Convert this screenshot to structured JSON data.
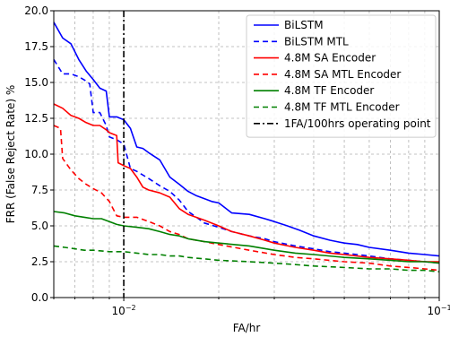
{
  "chart_data": {
    "type": "line",
    "title": "",
    "xlabel": "FA/hr",
    "ylabel": "FRR (False Reject Rate) %",
    "x_scale": "log",
    "xlim": [
      0.006,
      0.1
    ],
    "ylim": [
      0,
      20
    ],
    "x_ticks": [
      {
        "value": 0.01,
        "base": "10",
        "exp": "−2"
      },
      {
        "value": 0.1,
        "base": "10",
        "exp": "−1"
      }
    ],
    "y_ticks": [
      {
        "value": 0,
        "label": "0.0"
      },
      {
        "value": 2.5,
        "label": "2.5"
      },
      {
        "value": 5,
        "label": "5.0"
      },
      {
        "value": 7.5,
        "label": "7.5"
      },
      {
        "value": 10,
        "label": "10.0"
      },
      {
        "value": 12.5,
        "label": "12.5"
      },
      {
        "value": 15,
        "label": "15.0"
      },
      {
        "value": 17.5,
        "label": "17.5"
      },
      {
        "value": 20,
        "label": "20.0"
      }
    ],
    "grid": true,
    "legend_position": "top-right",
    "vline": {
      "x": 0.01,
      "name": "1FA/100hrs operating point",
      "color": "#000000",
      "dash": "dashdot"
    },
    "series": [
      {
        "name": "BiLSTM",
        "color": "#0000ff",
        "dash": "solid",
        "x": [
          0.006,
          0.0064,
          0.0068,
          0.0072,
          0.0076,
          0.008,
          0.0084,
          0.0088,
          0.009,
          0.0095,
          0.01,
          0.0105,
          0.011,
          0.0115,
          0.012,
          0.013,
          0.014,
          0.015,
          0.016,
          0.017,
          0.018,
          0.019,
          0.02,
          0.022,
          0.025,
          0.028,
          0.03,
          0.033,
          0.036,
          0.04,
          0.045,
          0.05,
          0.055,
          0.06,
          0.07,
          0.08,
          0.09,
          0.1
        ],
        "y": [
          19.2,
          18.1,
          17.7,
          16.6,
          15.8,
          15.2,
          14.6,
          14.4,
          12.6,
          12.6,
          12.4,
          11.8,
          10.5,
          10.4,
          10.1,
          9.6,
          8.4,
          7.9,
          7.4,
          7.1,
          6.9,
          6.7,
          6.6,
          5.9,
          5.8,
          5.5,
          5.3,
          5.0,
          4.7,
          4.3,
          4.0,
          3.8,
          3.7,
          3.5,
          3.3,
          3.1,
          3.0,
          2.9
        ]
      },
      {
        "name": "BiLSTM MTL",
        "color": "#0000ff",
        "dash": "dashed",
        "x": [
          0.006,
          0.0064,
          0.0068,
          0.0072,
          0.0076,
          0.0078,
          0.008,
          0.0084,
          0.0088,
          0.009,
          0.0095,
          0.01,
          0.0105,
          0.011,
          0.012,
          0.013,
          0.014,
          0.015,
          0.016,
          0.017,
          0.018,
          0.02,
          0.022,
          0.025,
          0.028,
          0.03,
          0.035,
          0.04,
          0.045,
          0.05,
          0.06,
          0.07,
          0.08,
          0.09,
          0.1
        ],
        "y": [
          16.6,
          15.6,
          15.6,
          15.4,
          15.1,
          14.9,
          12.9,
          12.9,
          12.0,
          11.2,
          11.0,
          10.7,
          9.0,
          8.8,
          8.3,
          7.8,
          7.4,
          6.8,
          6.0,
          5.6,
          5.2,
          4.9,
          4.6,
          4.3,
          4.1,
          3.9,
          3.6,
          3.4,
          3.2,
          3.1,
          2.9,
          2.7,
          2.6,
          2.5,
          2.4
        ]
      },
      {
        "name": "4.8M SA Encoder",
        "color": "#ff0000",
        "dash": "solid",
        "x": [
          0.006,
          0.0064,
          0.0068,
          0.0072,
          0.0076,
          0.008,
          0.0084,
          0.0088,
          0.009,
          0.0095,
          0.0096,
          0.01,
          0.0105,
          0.011,
          0.0115,
          0.012,
          0.013,
          0.014,
          0.015,
          0.016,
          0.018,
          0.02,
          0.022,
          0.025,
          0.028,
          0.03,
          0.035,
          0.04,
          0.045,
          0.05,
          0.06,
          0.07,
          0.08,
          0.09,
          0.1
        ],
        "y": [
          13.5,
          13.2,
          12.7,
          12.5,
          12.2,
          12.0,
          12.0,
          11.7,
          11.5,
          11.3,
          9.4,
          9.2,
          9.0,
          8.4,
          7.7,
          7.5,
          7.3,
          7.0,
          6.2,
          5.8,
          5.4,
          5.0,
          4.6,
          4.3,
          4.0,
          3.8,
          3.5,
          3.3,
          3.1,
          3.0,
          2.8,
          2.7,
          2.6,
          2.5,
          2.5
        ]
      },
      {
        "name": "4.8M SA MTL Encoder",
        "color": "#ff0000",
        "dash": "dashed",
        "x": [
          0.006,
          0.0063,
          0.0064,
          0.0068,
          0.0072,
          0.0076,
          0.008,
          0.0085,
          0.009,
          0.0095,
          0.01,
          0.011,
          0.012,
          0.013,
          0.014,
          0.015,
          0.016,
          0.018,
          0.02,
          0.025,
          0.03,
          0.035,
          0.04,
          0.05,
          0.06,
          0.07,
          0.08,
          0.09,
          0.1
        ],
        "y": [
          12.0,
          11.8,
          9.7,
          8.9,
          8.3,
          7.9,
          7.6,
          7.3,
          6.7,
          5.7,
          5.6,
          5.6,
          5.3,
          5.0,
          4.6,
          4.4,
          4.1,
          3.9,
          3.7,
          3.3,
          3.0,
          2.8,
          2.7,
          2.5,
          2.4,
          2.2,
          2.1,
          2.0,
          1.9
        ]
      },
      {
        "name": "4.8M TF Encoder",
        "color": "#008000",
        "dash": "solid",
        "x": [
          0.006,
          0.0065,
          0.007,
          0.0075,
          0.008,
          0.0085,
          0.009,
          0.0095,
          0.01,
          0.011,
          0.012,
          0.013,
          0.014,
          0.015,
          0.016,
          0.018,
          0.02,
          0.025,
          0.03,
          0.035,
          0.04,
          0.05,
          0.06,
          0.07,
          0.08,
          0.09,
          0.1
        ],
        "y": [
          6.0,
          5.9,
          5.7,
          5.6,
          5.5,
          5.5,
          5.3,
          5.1,
          5.0,
          4.9,
          4.8,
          4.6,
          4.4,
          4.3,
          4.1,
          3.9,
          3.8,
          3.6,
          3.3,
          3.1,
          3.0,
          2.8,
          2.7,
          2.6,
          2.5,
          2.5,
          2.4
        ]
      },
      {
        "name": "4.8M TF MTL Encoder",
        "color": "#008000",
        "dash": "dashed",
        "x": [
          0.006,
          0.0065,
          0.007,
          0.0075,
          0.008,
          0.009,
          0.01,
          0.011,
          0.012,
          0.013,
          0.014,
          0.015,
          0.016,
          0.018,
          0.02,
          0.025,
          0.03,
          0.035,
          0.04,
          0.05,
          0.06,
          0.07,
          0.08,
          0.09,
          0.1
        ],
        "y": [
          3.6,
          3.5,
          3.4,
          3.3,
          3.3,
          3.2,
          3.2,
          3.1,
          3.0,
          3.0,
          2.9,
          2.9,
          2.8,
          2.7,
          2.6,
          2.5,
          2.4,
          2.3,
          2.2,
          2.1,
          2.0,
          2.0,
          1.9,
          1.9,
          1.8
        ]
      }
    ]
  }
}
